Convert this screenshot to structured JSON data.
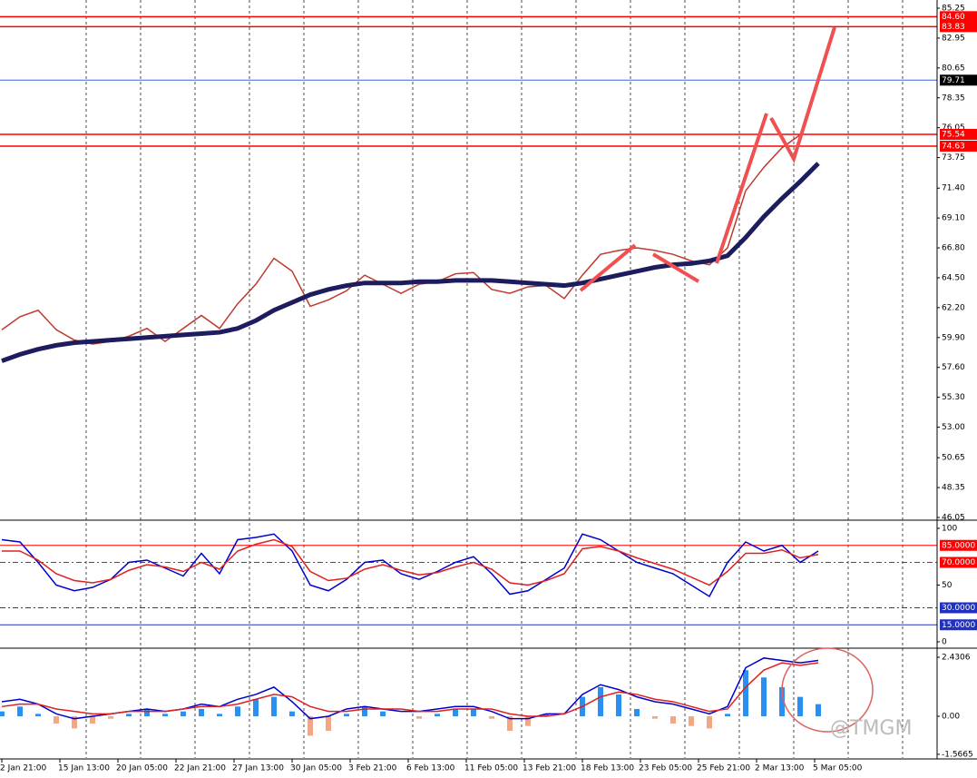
{
  "chart_data": [
    {
      "type": "line",
      "ylim": [
        45.91,
        85.88
      ],
      "yticks": [
        85.25,
        82.95,
        80.65,
        78.35,
        76.05,
        73.75,
        {
          "value": 71.4,
          "label": "71.40"
        },
        {
          "value": 69.1,
          "label": "69.10"
        },
        {
          "value": 66.8,
          "label": "66.80"
        },
        {
          "value": 64.5,
          "label": "64.50"
        },
        {
          "value": 62.2,
          "label": "62.20"
        },
        {
          "value": 59.9,
          "label": "59.90"
        },
        {
          "value": 57.6,
          "label": "57.60"
        },
        {
          "value": 55.3,
          "label": "55.30"
        },
        {
          "value": 53,
          "label": "53.00"
        },
        50.65,
        48.35,
        46.05
      ],
      "levels": [
        {
          "value": 84.6,
          "label": "84.60",
          "color": "#ff0000"
        },
        {
          "value": 83.83,
          "label": "83.83",
          "color": "#ff0000"
        },
        {
          "value": 79.71,
          "label": "79.71",
          "color": "#4060e0"
        },
        {
          "value": 75.54,
          "label": "75.54",
          "color": "#ff0000"
        },
        {
          "value": 74.63,
          "label": "74.63",
          "color": "#ff0000"
        }
      ],
      "series": [
        {
          "color": "#c0392b",
          "values": [
            60.5,
            61.5,
            62.0,
            60.5,
            59.7,
            59.4,
            59.6,
            60.0,
            60.6,
            59.6,
            60.6,
            61.6,
            60.6,
            62.5,
            64.0,
            66.0,
            65.0,
            62.3,
            62.8,
            63.5,
            64.7,
            64.0,
            63.3,
            64.0,
            64.2,
            64.8,
            64.9,
            63.6,
            63.3,
            63.8,
            63.9,
            62.9,
            64.7,
            66.3,
            66.6,
            66.8,
            66.6,
            66.3,
            65.8,
            65.5,
            66.8,
            71.2,
            73.0,
            74.5,
            75.5,
            79.5
          ]
        },
        {
          "color": "#1c1c5e",
          "values": [
            58.1,
            58.6,
            59.0,
            59.3,
            59.5,
            59.6,
            59.7,
            59.8,
            59.9,
            60.0,
            60.1,
            60.2,
            60.3,
            60.6,
            61.2,
            62.0,
            62.6,
            63.2,
            63.6,
            63.9,
            64.1,
            64.1,
            64.1,
            64.2,
            64.2,
            64.3,
            64.3,
            64.3,
            64.2,
            64.1,
            64.0,
            63.9,
            64.1,
            64.4,
            64.7,
            65.0,
            65.3,
            65.5,
            65.6,
            65.8,
            66.2,
            67.6,
            69.2,
            70.6,
            71.9,
            73.3
          ]
        }
      ]
    },
    {
      "type": "line",
      "ylim": [
        -4.8,
        105.6
      ],
      "yticks": [
        100,
        50,
        0
      ],
      "levels": [
        {
          "value": 85,
          "label": "85.0000",
          "color": "#ff0000"
        },
        {
          "value": 70,
          "label": "70.0000",
          "color": "#ff0000"
        },
        {
          "value": 30,
          "label": "30.0000",
          "color": "#2030c0"
        },
        {
          "value": 15,
          "label": "15.0000",
          "color": "#2030c0"
        }
      ],
      "series": [
        {
          "color": "#0000cc",
          "values": [
            90,
            88,
            70,
            50,
            45,
            48,
            55,
            70,
            72,
            65,
            58,
            78,
            60,
            90,
            92,
            95,
            80,
            50,
            45,
            55,
            70,
            72,
            60,
            55,
            62,
            70,
            75,
            60,
            42,
            45,
            55,
            65,
            95,
            90,
            80,
            70,
            65,
            60,
            50,
            40,
            70,
            88,
            80,
            85,
            70,
            80
          ]
        },
        {
          "color": "#e02020",
          "values": [
            80,
            80,
            72,
            60,
            54,
            52,
            55,
            63,
            68,
            66,
            62,
            70,
            64,
            80,
            86,
            90,
            84,
            62,
            54,
            56,
            64,
            68,
            63,
            59,
            61,
            66,
            70,
            64,
            52,
            50,
            54,
            60,
            82,
            84,
            80,
            74,
            69,
            64,
            57,
            50,
            62,
            78,
            78,
            81,
            74,
            77
          ]
        }
      ]
    },
    {
      "type": "macd",
      "ylim": [
        -1.72,
        2.73
      ],
      "yticks": [
        2.4306,
        {
          "value": 0,
          "label": "0.00"
        },
        -1.5665
      ],
      "xticks": [
        "2 Jan 21:00",
        "15 Jan 13:00",
        "20 Jan 05:00",
        "22 Jan 21:00",
        "27 Jan 13:00",
        "30 Jan 05:00",
        "3 Feb 21:00",
        "6 Feb 13:00",
        "11 Feb 05:00",
        "13 Feb 21:00",
        "18 Feb 13:00",
        "23 Feb 05:00",
        "25 Feb 21:00",
        "2 Mar 13:00",
        "5 Mar 05:00"
      ],
      "histogram": [
        0.2,
        0.4,
        0.1,
        -0.3,
        -0.5,
        -0.3,
        -0.1,
        0.1,
        0.3,
        0.1,
        0.2,
        0.3,
        0.1,
        0.4,
        0.7,
        0.8,
        0.2,
        -0.8,
        -0.6,
        0.1,
        0.4,
        0.2,
        0,
        -0.1,
        0.1,
        0.3,
        0.3,
        -0.1,
        -0.6,
        -0.4,
        0.1,
        0,
        0.8,
        1.2,
        0.9,
        0.3,
        -0.1,
        -0.3,
        -0.4,
        -0.5,
        0.1,
        1.9,
        1.6,
        1.2,
        0.8,
        0.5
      ],
      "series": [
        {
          "color": "#0000cc",
          "values": [
            0.6,
            0.7,
            0.5,
            0.1,
            -0.1,
            0,
            0.1,
            0.2,
            0.3,
            0.2,
            0.3,
            0.5,
            0.4,
            0.7,
            0.9,
            1.2,
            0.6,
            -0.1,
            0,
            0.3,
            0.4,
            0.3,
            0.2,
            0.2,
            0.3,
            0.4,
            0.4,
            0.2,
            -0.1,
            -0.1,
            0.1,
            0.1,
            0.9,
            1.3,
            1.1,
            0.8,
            0.6,
            0.5,
            0.3,
            0.1,
            0.4,
            2.0,
            2.4,
            2.3,
            2.2,
            2.3
          ]
        },
        {
          "color": "#e02020",
          "values": [
            0.4,
            0.5,
            0.5,
            0.3,
            0.2,
            0.1,
            0.1,
            0.2,
            0.2,
            0.2,
            0.3,
            0.4,
            0.4,
            0.5,
            0.7,
            0.9,
            0.8,
            0.4,
            0.2,
            0.2,
            0.3,
            0.3,
            0.3,
            0.2,
            0.2,
            0.3,
            0.3,
            0.3,
            0.1,
            0.0,
            0.0,
            0.1,
            0.4,
            0.8,
            1.0,
            0.9,
            0.7,
            0.6,
            0.4,
            0.2,
            0.3,
            1.2,
            1.9,
            2.2,
            2.1,
            2.2
          ]
        }
      ]
    }
  ],
  "watermark": "@TMGM"
}
